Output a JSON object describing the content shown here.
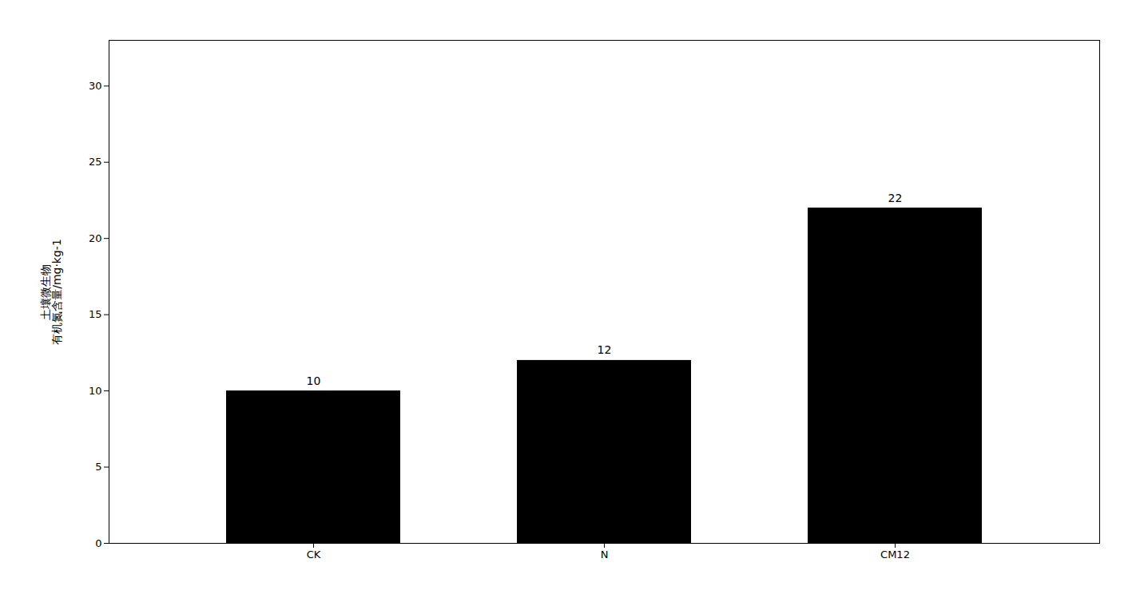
{
  "chart_data": {
    "type": "bar",
    "categories": [
      "CK",
      "N",
      "CM12"
    ],
    "values": [
      10,
      12,
      22
    ],
    "ylabel": "土壤微生物\n有机氮含量/mg·kg-1",
    "ylim": [
      0,
      33
    ],
    "yticks": [
      0,
      5,
      10,
      15,
      20,
      25,
      30
    ],
    "data_labels": true,
    "grid": false
  }
}
